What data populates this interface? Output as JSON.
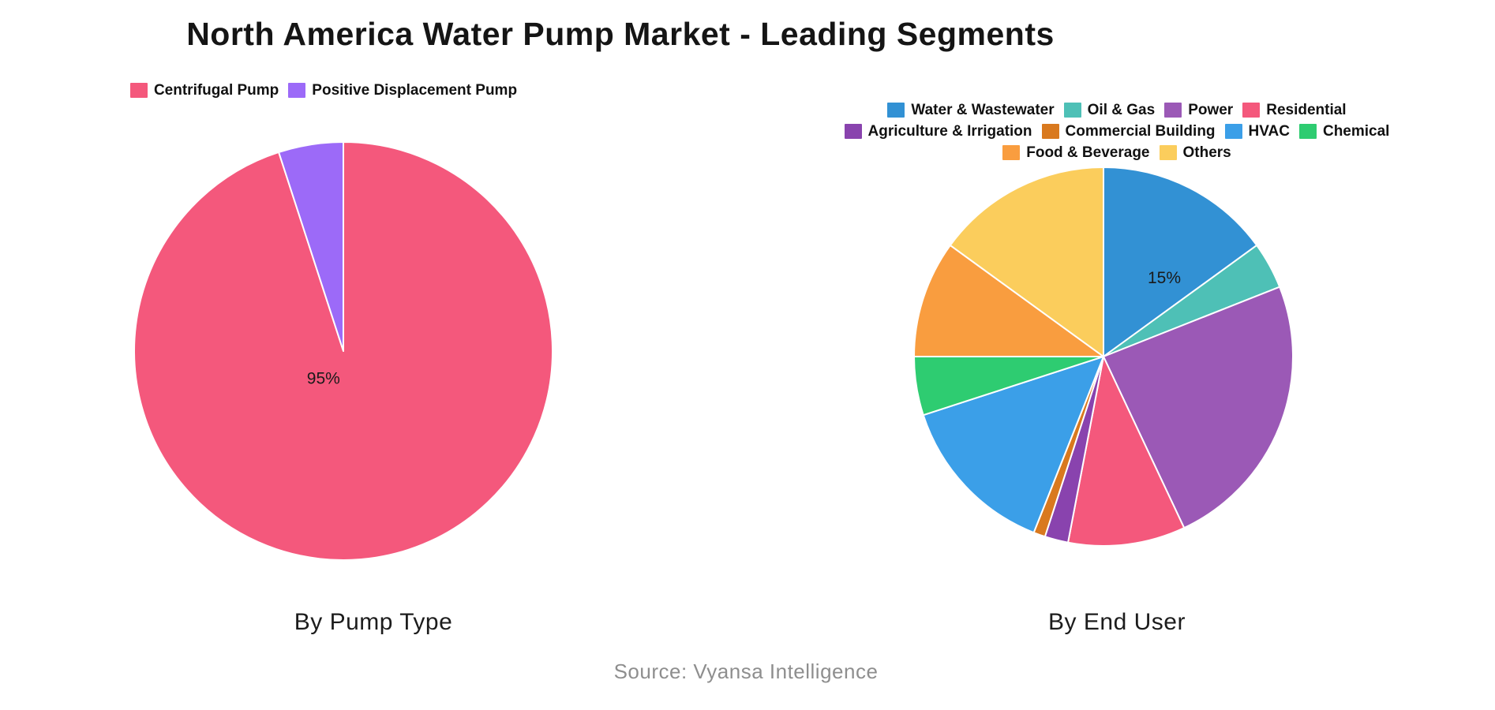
{
  "title": "North America Water Pump Market - Leading Segments",
  "source": "Source: Vyansa Intelligence",
  "chart_data": [
    {
      "type": "pie",
      "title": "By Pump Type",
      "labels": [
        "Centrifugal Pump",
        "Positive Displacement Pump"
      ],
      "values": [
        95,
        5
      ],
      "colors": [
        "#F4587C",
        "#9C6AF8"
      ],
      "start_angle_deg": 0,
      "direction": "clockwise",
      "legend_position": "top",
      "legend_rows": [
        [
          0,
          1
        ]
      ],
      "value_labels": [
        {
          "slice": 0,
          "text": "95%"
        }
      ]
    },
    {
      "type": "pie",
      "title": "By End User",
      "labels": [
        "Water & Wastewater",
        "Oil & Gas",
        "Power",
        "Residential",
        "Agriculture & Irrigation",
        "Commercial Building",
        "HVAC",
        "Chemical",
        "Food & Beverage",
        "Others"
      ],
      "values": [
        15,
        4,
        24,
        10,
        2,
        1,
        14,
        5,
        10,
        15
      ],
      "colors": [
        "#3291D4",
        "#4EC0B6",
        "#9B59B6",
        "#F4587C",
        "#8943AE",
        "#D9791E",
        "#3B9FE8",
        "#2ECC71",
        "#F99D3F",
        "#FBCD5C"
      ],
      "start_angle_deg": 0,
      "direction": "clockwise",
      "legend_position": "top",
      "legend_rows": [
        [
          0,
          1,
          2,
          3
        ],
        [
          4,
          5,
          6,
          7
        ],
        [
          8,
          9
        ]
      ],
      "value_labels": [
        {
          "slice": 0,
          "text": "15%"
        }
      ]
    }
  ]
}
